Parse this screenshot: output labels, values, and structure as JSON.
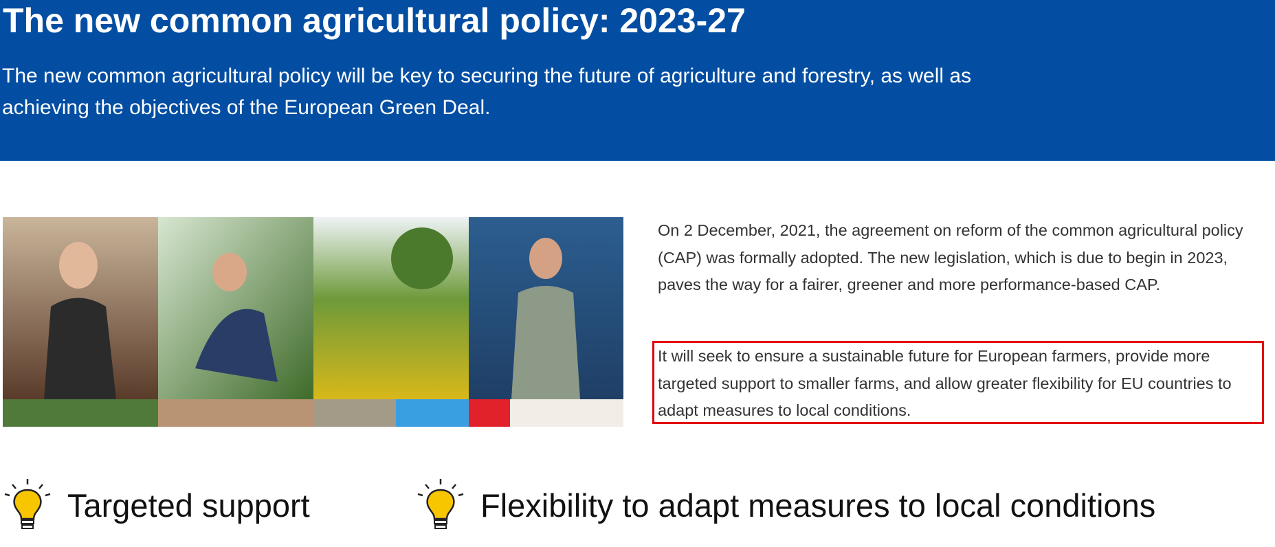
{
  "header": {
    "title": "The new common agricultural policy: 2023-27",
    "subtitle": "The new common agricultural policy will be key to securing the future of agriculture and forestry, as well as achieving the objectives of the European Green Deal."
  },
  "body": {
    "paragraphs": [
      "On 2 December, 2021, the agreement on reform of the common agricultural policy (CAP) was formally adopted. The new legislation, which is due to begin in 2023, paves the way for a fairer, greener and more performance-based CAP.",
      "It will seek to ensure a sustainable future for European farmers, provide more targeted support to smaller farms, and allow greater flexibility for EU countries to adapt measures to local conditions."
    ]
  },
  "features": [
    {
      "label": "Targeted support"
    },
    {
      "label": "Flexibility to adapt measures to local conditions"
    }
  ]
}
